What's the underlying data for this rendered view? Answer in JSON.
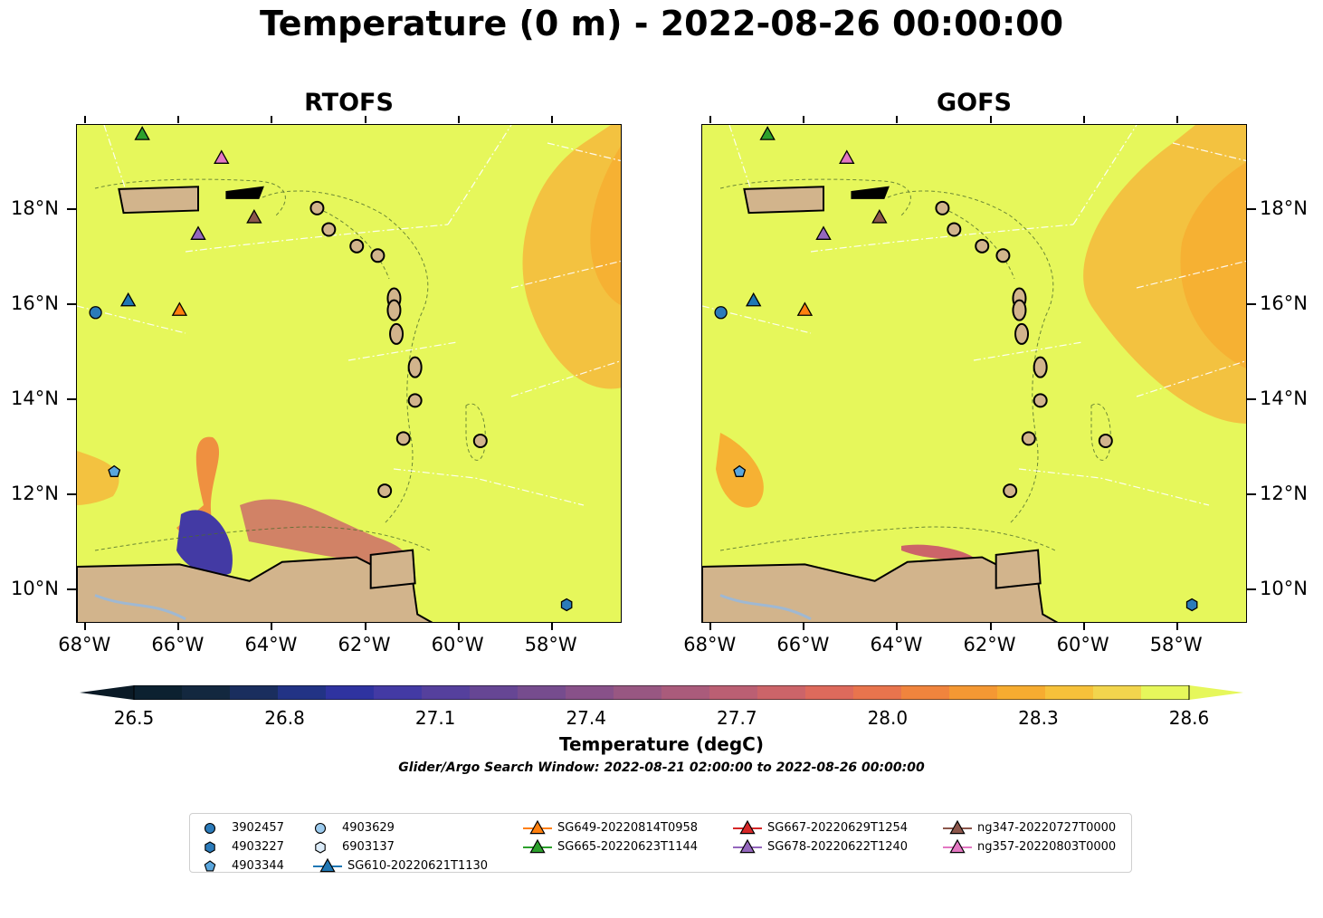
{
  "title": "Temperature (0 m) - 2022-08-26 00:00:00",
  "panels": [
    {
      "title": "RTOFS"
    },
    {
      "title": "GOFS"
    }
  ],
  "axes": {
    "lon_labels": [
      "68°W",
      "66°W",
      "64°W",
      "62°W",
      "60°W",
      "58°W"
    ],
    "lon_values": [
      -68,
      -66,
      -64,
      -62,
      -60,
      -58
    ],
    "lat_labels": [
      "18°N",
      "16°N",
      "14°N",
      "12°N",
      "10°N"
    ],
    "lat_values": [
      18,
      16,
      14,
      12,
      10
    ],
    "lon_range": [
      -68.2,
      -56.5
    ],
    "lat_range": [
      9.3,
      19.8
    ]
  },
  "colorbar": {
    "label": "Temperature (degC)",
    "ticks": [
      "26.5",
      "26.8",
      "27.1",
      "27.4",
      "27.7",
      "28.0",
      "28.3",
      "28.6"
    ],
    "range": [
      26.5,
      28.6
    ],
    "colors": [
      "#0c2130",
      "#13283f",
      "#1a2e5e",
      "#223385",
      "#2f33a0",
      "#433aa4",
      "#55409d",
      "#664694",
      "#764c8e",
      "#885189",
      "#985782",
      "#aa5b7b",
      "#bb5f73",
      "#cc6469",
      "#dd6a5c",
      "#e8744d",
      "#f0843d",
      "#f49833",
      "#f6ac30",
      "#f6c13a",
      "#f2d54d",
      "#e6f75b"
    ]
  },
  "search_window": "Glider/Argo Search Window: 2022-08-21 02:00:00 to 2022-08-26 00:00:00",
  "legend": [
    {
      "label": "3902457",
      "marker": "circle",
      "color": "#2b7bba"
    },
    {
      "label": "4903227",
      "marker": "hexagon",
      "color": "#2b7bba"
    },
    {
      "label": "4903344",
      "marker": "pentagon",
      "color": "#5aa6dd"
    },
    {
      "label": "4903629",
      "marker": "circle",
      "color": "#9ccbee"
    },
    {
      "label": "6903137",
      "marker": "hexagon",
      "color": "#dcecf9"
    },
    {
      "label": "SG610-20220621T1130",
      "marker": "triangle-line",
      "color": "#1f77b4"
    },
    {
      "label": "SG649-20220814T0958",
      "marker": "triangle-line",
      "color": "#ff7f0e"
    },
    {
      "label": "SG665-20220623T1144",
      "marker": "triangle-line",
      "color": "#2ca02c"
    },
    {
      "label": "SG667-20220629T1254",
      "marker": "triangle-line",
      "color": "#d62728"
    },
    {
      "label": "SG678-20220622T1240",
      "marker": "triangle-line",
      "color": "#9467bd"
    },
    {
      "label": "ng347-20220727T0000",
      "marker": "triangle-line",
      "color": "#8c564b"
    },
    {
      "label": "ng357-20220803T0000",
      "marker": "triangle-line",
      "color": "#e377c2"
    }
  ],
  "markers": [
    {
      "id": "3902457",
      "shape": "circle",
      "color": "#2b7bba",
      "lon": -67.8,
      "lat": 15.85
    },
    {
      "id": "4903227",
      "shape": "hexagon",
      "color": "#2b7bba",
      "lon": -57.7,
      "lat": 9.7
    },
    {
      "id": "4903344",
      "shape": "pentagon",
      "color": "#5aa6dd",
      "lon": -67.4,
      "lat": 12.5
    },
    {
      "id": "SG610-20220621T1130",
      "shape": "triangle",
      "color": "#1f77b4",
      "lon": -67.1,
      "lat": 16.1
    },
    {
      "id": "SG649-20220814T0958",
      "shape": "triangle",
      "color": "#ff7f0e",
      "lon": -66.0,
      "lat": 15.9
    },
    {
      "id": "SG665-20220623T1144",
      "shape": "triangle",
      "color": "#2ca02c",
      "lon": -66.8,
      "lat": 19.6
    },
    {
      "id": "SG678-20220622T1240",
      "shape": "triangle",
      "color": "#9467bd",
      "lon": -65.6,
      "lat": 17.5
    },
    {
      "id": "ng347-20220727T0000",
      "shape": "triangle",
      "color": "#8c564b",
      "lon": -64.4,
      "lat": 17.85
    },
    {
      "id": "ng357-20220803T0000",
      "shape": "triangle",
      "color": "#e377c2",
      "lon": -65.1,
      "lat": 19.1
    }
  ],
  "colors": {
    "ocean_base": "#e6f75b",
    "land": "#d2b48c",
    "warm": "#f6b133",
    "warmer": "#f3c240",
    "cool": "#2f33a0",
    "contour": "#4d6b2d"
  }
}
